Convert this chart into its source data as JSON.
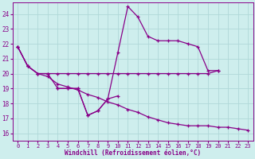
{
  "xlabel": "Windchill (Refroidissement éolien,°C)",
  "background_color": "#ceeeed",
  "grid_color": "#b0d8d8",
  "line_color": "#880088",
  "xlim": [
    -0.5,
    23.5
  ],
  "ylim": [
    15.5,
    24.8
  ],
  "yticks": [
    16,
    17,
    18,
    19,
    20,
    21,
    22,
    23,
    24
  ],
  "xticks": [
    0,
    1,
    2,
    3,
    4,
    5,
    6,
    7,
    8,
    9,
    10,
    11,
    12,
    13,
    14,
    15,
    16,
    17,
    18,
    19,
    20,
    21,
    22,
    23
  ],
  "line1_x": [
    0,
    1,
    2,
    3,
    4,
    5,
    6,
    7,
    8,
    9,
    10,
    11,
    12,
    13,
    14,
    15,
    16,
    17,
    18,
    19,
    20
  ],
  "line1_y": [
    21.8,
    20.5,
    20.0,
    20.0,
    20.0,
    20.0,
    20.0,
    20.0,
    20.0,
    20.0,
    20.0,
    20.0,
    20.0,
    20.0,
    20.0,
    20.0,
    20.0,
    20.0,
    20.0,
    20.0,
    20.2
  ],
  "line2_x": [
    0,
    1,
    2,
    3,
    4,
    5,
    6,
    7,
    8,
    9,
    10,
    11,
    12,
    13,
    14,
    15,
    16,
    17,
    18,
    19,
    20
  ],
  "line2_y": [
    21.8,
    20.5,
    20.0,
    20.0,
    19.0,
    19.0,
    19.0,
    17.2,
    17.5,
    18.3,
    21.4,
    24.5,
    23.8,
    22.5,
    22.2,
    22.2,
    22.2,
    22.0,
    21.8,
    20.2,
    20.2
  ],
  "line3_x": [
    0,
    1,
    2,
    3,
    4,
    5,
    6,
    7,
    8,
    9,
    10,
    11,
    12,
    13,
    14,
    15,
    16,
    17,
    18,
    19,
    20,
    21,
    22,
    23
  ],
  "line3_y": [
    21.8,
    20.5,
    20.0,
    19.8,
    19.3,
    19.1,
    18.9,
    18.6,
    18.4,
    18.1,
    17.9,
    17.6,
    17.4,
    17.1,
    16.9,
    16.7,
    16.6,
    16.5,
    16.5,
    16.5,
    16.4,
    16.4,
    16.3,
    16.2
  ],
  "line4_x": [
    4,
    5,
    6,
    7,
    8,
    9,
    10
  ],
  "line4_y": [
    19.0,
    19.0,
    19.0,
    17.2,
    17.5,
    18.3,
    18.5
  ]
}
